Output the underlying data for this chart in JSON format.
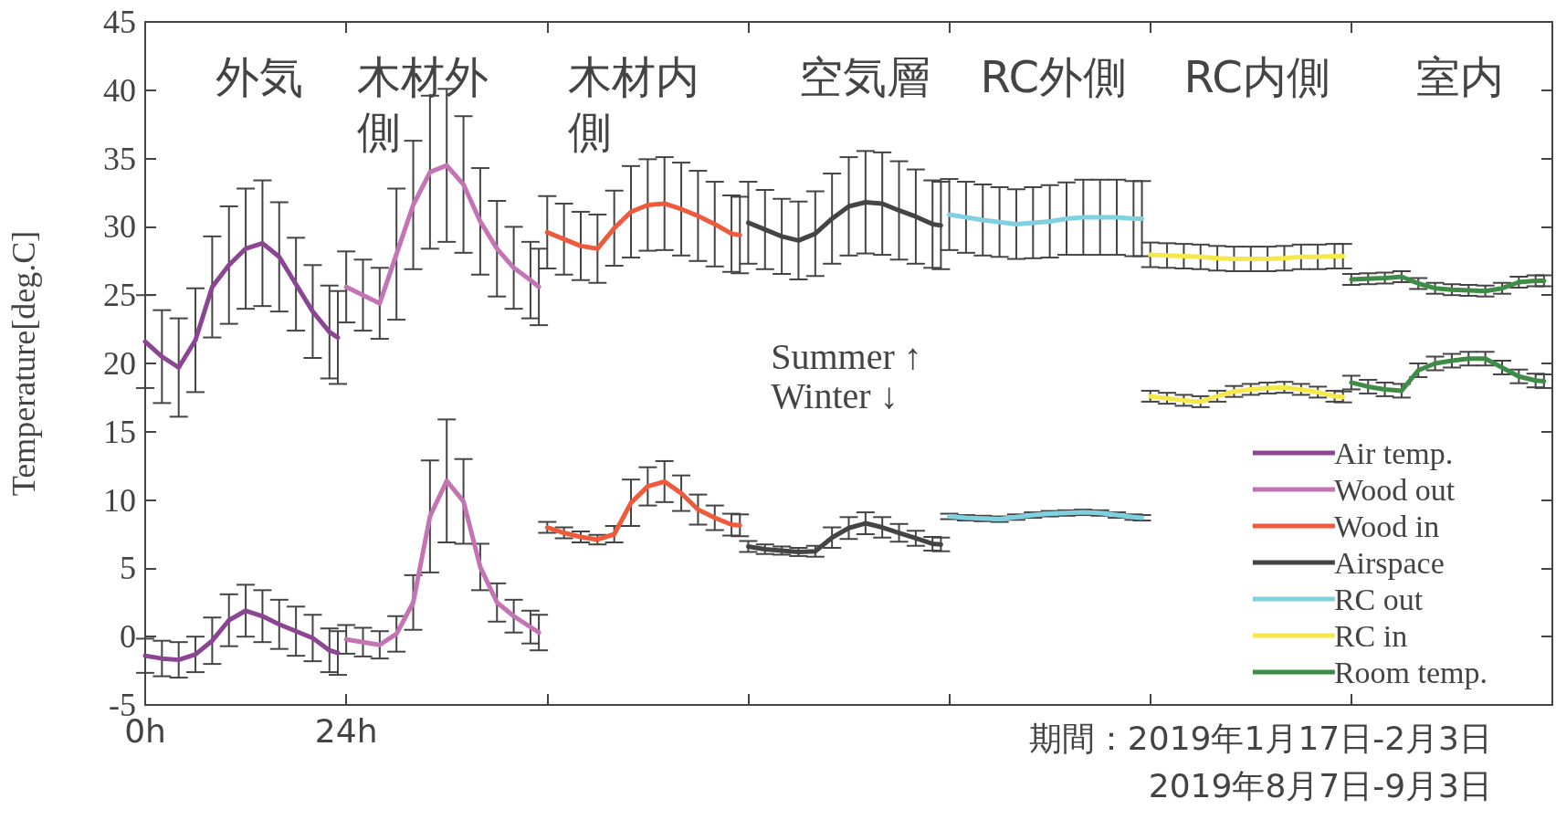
{
  "chart_data": {
    "type": "line",
    "ylabel": "Temperature[deg.C]",
    "xlim": [
      0,
      168
    ],
    "xticks": [
      {
        "value": 0,
        "label": "0h"
      },
      {
        "value": 24,
        "label": "24h"
      },
      {
        "value": 48,
        "label": null
      },
      {
        "value": 72,
        "label": null
      },
      {
        "value": 96,
        "label": null
      },
      {
        "value": 120,
        "label": null
      },
      {
        "value": 144,
        "label": null
      },
      {
        "value": 168,
        "label": null
      }
    ],
    "ylim": [
      -5,
      45
    ],
    "yticks": [
      -5,
      0,
      5,
      10,
      15,
      20,
      25,
      30,
      35,
      40,
      45
    ],
    "grid": false,
    "legend": "bottom right",
    "marker": "none",
    "line_style": "solid",
    "series": [
      {
        "name": "Air temp.",
        "color": "#8b4593",
        "x": [
          0,
          2,
          4,
          6,
          8,
          10,
          12,
          14,
          16,
          18,
          20,
          22,
          23
        ],
        "values": [
          21.6,
          20.5,
          19.7,
          21.7,
          25.6,
          27.2,
          28.4,
          28.8,
          27.8,
          25.8,
          23.8,
          22.3,
          21.9
        ],
        "errors": [
          3.4,
          3.4,
          3.6,
          3.8,
          3.7,
          4.3,
          4.4,
          4.6,
          4,
          3.4,
          3.4,
          3.4,
          3.4
        ]
      },
      {
        "color": "#8b4593",
        "x": [
          0,
          2,
          4,
          6,
          8,
          10,
          12,
          14,
          16,
          18,
          20,
          22,
          23
        ],
        "values": [
          -1.4,
          -1.6,
          -1.7,
          -1.3,
          -0.3,
          1.2,
          1.9,
          1.5,
          0.9,
          0.4,
          -0.1,
          -1.0,
          -1.2
        ],
        "errors": [
          1.25,
          1.3,
          1.3,
          1.3,
          1.7,
          1.9,
          1.9,
          1.9,
          1.8,
          1.8,
          1.7,
          1.6,
          1.6
        ]
      },
      {
        "name": "Wood out",
        "color": "#c474b4",
        "x": [
          24,
          26,
          28,
          30,
          32,
          34,
          36,
          38,
          40,
          42,
          44,
          46,
          47
        ],
        "values": [
          25.6,
          25.0,
          24.4,
          28.0,
          31.6,
          34.0,
          34.5,
          33.1,
          30.4,
          28.4,
          27.0,
          26.1,
          25.6
        ],
        "errors": [
          2.6,
          2.6,
          2.6,
          4.8,
          4.7,
          5.6,
          5.6,
          5.0,
          3.9,
          3.5,
          3.0,
          2.8,
          2.8
        ]
      },
      {
        "color": "#c474b4",
        "x": [
          24,
          26,
          28,
          30,
          32,
          34,
          36,
          38,
          40,
          42,
          44,
          46,
          47
        ],
        "values": [
          -0.2,
          -0.4,
          -0.6,
          0.2,
          2.5,
          8.8,
          11.4,
          9.9,
          5.1,
          2.5,
          1.5,
          0.7,
          0.3
        ],
        "errors": [
          1.05,
          1.05,
          1.0,
          1.3,
          2.0,
          4.1,
          4.5,
          3.1,
          1.7,
          1.4,
          1.2,
          1.2,
          1.3
        ]
      },
      {
        "name": "Wood in",
        "color": "#f05a3c",
        "x": [
          48,
          50,
          52,
          54,
          56,
          58,
          60,
          62,
          64,
          66,
          68,
          70,
          71
        ],
        "values": [
          29.6,
          29.1,
          28.6,
          28.4,
          29.9,
          31.1,
          31.6,
          31.7,
          31.3,
          30.8,
          30.2,
          29.5,
          29.4
        ],
        "errors": [
          2.65,
          2.6,
          2.5,
          2.5,
          2.75,
          3.35,
          3.35,
          3.4,
          3.4,
          3.3,
          3.1,
          2.8,
          2.8
        ]
      },
      {
        "color": "#f05a3c",
        "x": [
          48,
          50,
          52,
          54,
          56,
          58,
          60,
          62,
          64,
          66,
          68,
          70,
          71
        ],
        "values": [
          8.0,
          7.6,
          7.3,
          7.1,
          7.5,
          9.8,
          11.0,
          11.35,
          10.5,
          9.3,
          8.7,
          8.2,
          8.15
        ],
        "errors": [
          0.4,
          0.4,
          0.4,
          0.35,
          0.6,
          1.7,
          1.4,
          1.5,
          1.3,
          1.1,
          0.9,
          0.8,
          0.8
        ]
      },
      {
        "name": "Airspace",
        "color": "#444444",
        "x": [
          72,
          74,
          76,
          78,
          80,
          82,
          84,
          86,
          88,
          90,
          92,
          94,
          95
        ],
        "values": [
          30.3,
          29.8,
          29.3,
          29.0,
          29.5,
          30.6,
          31.5,
          31.8,
          31.7,
          31.2,
          30.75,
          30.2,
          30.1
        ],
        "errors": [
          3.0,
          2.9,
          2.75,
          2.85,
          3.1,
          3.3,
          3.6,
          3.75,
          3.75,
          3.6,
          3.45,
          3.2,
          3.2
        ]
      },
      {
        "color": "#444444",
        "x": [
          72,
          74,
          76,
          78,
          80,
          82,
          84,
          86,
          88,
          90,
          92,
          94,
          95
        ],
        "values": [
          6.6,
          6.4,
          6.3,
          6.2,
          6.25,
          7.25,
          7.95,
          8.3,
          8.0,
          7.6,
          7.2,
          6.8,
          6.75
        ],
        "errors": [
          0.4,
          0.35,
          0.3,
          0.3,
          0.4,
          0.75,
          0.8,
          0.8,
          0.75,
          0.65,
          0.55,
          0.5,
          0.5
        ]
      },
      {
        "name": "RC out",
        "color": "#7fd0e0",
        "x": [
          96,
          98,
          100,
          102,
          104,
          106,
          108,
          110,
          112,
          114,
          116,
          118,
          119
        ],
        "values": [
          30.9,
          30.7,
          30.5,
          30.35,
          30.2,
          30.3,
          30.4,
          30.6,
          30.7,
          30.7,
          30.7,
          30.6,
          30.6
        ],
        "errors": [
          2.6,
          2.6,
          2.6,
          2.55,
          2.55,
          2.6,
          2.65,
          2.65,
          2.75,
          2.75,
          2.75,
          2.75,
          2.75
        ]
      },
      {
        "color": "#7fd0e0",
        "x": [
          96,
          98,
          100,
          102,
          104,
          106,
          108,
          110,
          112,
          114,
          116,
          118,
          119
        ],
        "values": [
          8.8,
          8.7,
          8.65,
          8.6,
          8.75,
          8.9,
          9.0,
          9.05,
          9.1,
          9.05,
          8.9,
          8.75,
          8.7
        ],
        "errors": [
          0.2,
          0.2,
          0.2,
          0.2,
          0.2,
          0.2,
          0.2,
          0.2,
          0.2,
          0.2,
          0.2,
          0.2,
          0.2
        ]
      },
      {
        "name": "RC in",
        "color": "#f5e84a",
        "x": [
          120,
          122,
          124,
          126,
          128,
          130,
          132,
          134,
          136,
          138,
          140,
          142,
          143
        ],
        "values": [
          27.95,
          27.9,
          27.85,
          27.8,
          27.7,
          27.65,
          27.65,
          27.65,
          27.7,
          27.8,
          27.8,
          27.85,
          27.85
        ],
        "errors": [
          0.9,
          0.9,
          0.9,
          0.9,
          0.9,
          0.9,
          0.9,
          0.9,
          0.9,
          0.9,
          0.9,
          0.9,
          0.9
        ]
      },
      {
        "color": "#f5e84a",
        "x": [
          120,
          122,
          124,
          126,
          128,
          130,
          132,
          134,
          136,
          138,
          140,
          142,
          143
        ],
        "values": [
          17.6,
          17.45,
          17.3,
          17.2,
          17.6,
          17.95,
          18.1,
          18.2,
          18.25,
          18.1,
          17.9,
          17.6,
          17.55
        ],
        "errors": [
          0.4,
          0.4,
          0.4,
          0.4,
          0.4,
          0.4,
          0.4,
          0.4,
          0.4,
          0.4,
          0.4,
          0.4,
          0.4
        ]
      },
      {
        "name": "Room temp.",
        "color": "#3e8c46",
        "x": [
          144,
          146,
          148,
          150,
          152,
          154,
          156,
          158,
          160,
          162,
          164,
          166,
          167
        ],
        "values": [
          26.15,
          26.2,
          26.25,
          26.35,
          25.85,
          25.5,
          25.4,
          25.35,
          25.3,
          25.5,
          25.95,
          26.05,
          26.05
        ],
        "errors": [
          0.4,
          0.4,
          0.4,
          0.4,
          0.4,
          0.4,
          0.4,
          0.4,
          0.4,
          0.4,
          0.4,
          0.4,
          0.4
        ]
      },
      {
        "color": "#3e8c46",
        "x": [
          144,
          146,
          148,
          150,
          152,
          154,
          156,
          158,
          160,
          162,
          164,
          166,
          167
        ],
        "values": [
          18.6,
          18.3,
          18.1,
          18.0,
          19.5,
          20.0,
          20.2,
          20.35,
          20.35,
          19.7,
          19.05,
          18.75,
          18.7
        ],
        "errors": [
          0.5,
          0.5,
          0.5,
          0.5,
          0.5,
          0.5,
          0.5,
          0.5,
          0.5,
          0.5,
          0.5,
          0.5,
          0.5
        ]
      }
    ],
    "annotations": [
      "外気",
      "木材外側",
      "木材内側",
      "空気層",
      "RC外側",
      "RC内側",
      "室内",
      "Summer ↑",
      "Winter ↓",
      "期間：2019年1月17日-2月3日",
      "2019年8月7日-9月3日"
    ]
  }
}
